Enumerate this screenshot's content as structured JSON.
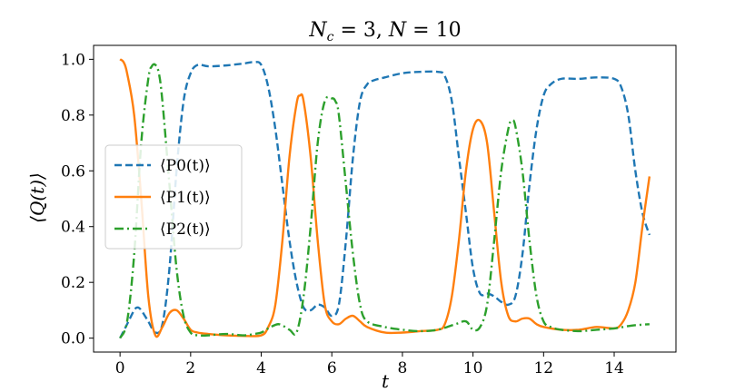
{
  "chart_data": {
    "type": "line",
    "title": "N_c = 3, N = 10",
    "xlabel": "t",
    "ylabel": "⟨Q(t)⟩",
    "xlim": [
      -0.75,
      15.75
    ],
    "ylim": [
      -0.05,
      1.05
    ],
    "xticks": [
      0,
      2,
      4,
      6,
      8,
      10,
      12,
      14
    ],
    "yticks": [
      0.0,
      0.2,
      0.4,
      0.6,
      0.8,
      1.0
    ],
    "xtick_labels": [
      "0",
      "2",
      "4",
      "6",
      "8",
      "10",
      "12",
      "14"
    ],
    "ytick_labels": [
      "0.0",
      "0.2",
      "0.4",
      "0.6",
      "0.8",
      "1.0"
    ],
    "grid": false,
    "legend_position": "center-left",
    "series": [
      {
        "name": "⟨P0(t)⟩",
        "color": "#1f77b4",
        "style": "dashed",
        "x": [
          0,
          0.2,
          0.4,
          0.5,
          0.6,
          0.8,
          1.0,
          1.2,
          1.4,
          1.6,
          1.8,
          2.0,
          2.2,
          2.5,
          3.0,
          3.5,
          3.8,
          4.0,
          4.2,
          4.4,
          4.6,
          4.8,
          5.0,
          5.2,
          5.4,
          5.6,
          5.8,
          6.0,
          6.2,
          6.4,
          6.6,
          6.8,
          7.0,
          7.2,
          7.5,
          8.0,
          8.5,
          9.0,
          9.2,
          9.4,
          9.6,
          9.8,
          10.0,
          10.2,
          10.4,
          10.6,
          10.8,
          11.0,
          11.2,
          11.4,
          11.6,
          11.8,
          12.0,
          12.2,
          12.5,
          13.0,
          13.5,
          14.0,
          14.2,
          14.4,
          14.6,
          14.8,
          15.0
        ],
        "y": [
          0.0,
          0.05,
          0.1,
          0.11,
          0.1,
          0.06,
          0.02,
          0.05,
          0.25,
          0.6,
          0.85,
          0.95,
          0.98,
          0.975,
          0.978,
          0.985,
          0.99,
          0.98,
          0.9,
          0.75,
          0.55,
          0.35,
          0.2,
          0.11,
          0.1,
          0.12,
          0.11,
          0.08,
          0.12,
          0.35,
          0.65,
          0.85,
          0.91,
          0.925,
          0.935,
          0.95,
          0.955,
          0.955,
          0.94,
          0.85,
          0.65,
          0.45,
          0.25,
          0.16,
          0.16,
          0.15,
          0.13,
          0.12,
          0.15,
          0.3,
          0.55,
          0.75,
          0.87,
          0.91,
          0.93,
          0.93,
          0.935,
          0.93,
          0.9,
          0.8,
          0.6,
          0.45,
          0.37
        ]
      },
      {
        "name": "⟨P1(t)⟩",
        "color": "#ff7f0e",
        "style": "solid",
        "x": [
          0,
          0.1,
          0.2,
          0.4,
          0.6,
          0.8,
          1.0,
          1.2,
          1.4,
          1.6,
          1.8,
          2.0,
          2.2,
          2.5,
          3.0,
          3.5,
          4.0,
          4.2,
          4.4,
          4.6,
          4.8,
          5.0,
          5.1,
          5.2,
          5.4,
          5.6,
          5.8,
          6.0,
          6.2,
          6.4,
          6.6,
          6.8,
          7.0,
          7.5,
          8.0,
          8.5,
          9.0,
          9.2,
          9.4,
          9.6,
          9.8,
          10.0,
          10.2,
          10.4,
          10.6,
          10.8,
          11.0,
          11.2,
          11.4,
          11.6,
          11.8,
          12.0,
          12.5,
          13.0,
          13.5,
          14.0,
          14.2,
          14.4,
          14.6,
          14.8,
          15.0
        ],
        "y": [
          1.0,
          0.99,
          0.95,
          0.8,
          0.5,
          0.15,
          0.01,
          0.04,
          0.09,
          0.1,
          0.07,
          0.03,
          0.02,
          0.015,
          0.01,
          0.008,
          0.01,
          0.04,
          0.12,
          0.35,
          0.65,
          0.84,
          0.87,
          0.85,
          0.65,
          0.35,
          0.12,
          0.06,
          0.05,
          0.07,
          0.08,
          0.06,
          0.04,
          0.02,
          0.02,
          0.025,
          0.03,
          0.05,
          0.15,
          0.35,
          0.6,
          0.75,
          0.78,
          0.7,
          0.45,
          0.2,
          0.08,
          0.06,
          0.07,
          0.07,
          0.05,
          0.04,
          0.03,
          0.03,
          0.04,
          0.035,
          0.05,
          0.1,
          0.2,
          0.4,
          0.58
        ]
      },
      {
        "name": "⟨P2(t)⟩",
        "color": "#2ca02c",
        "style": "dashdot",
        "x": [
          0,
          0.2,
          0.4,
          0.6,
          0.8,
          0.9,
          1.0,
          1.1,
          1.2,
          1.4,
          1.6,
          1.8,
          2.0,
          2.2,
          2.5,
          3.0,
          3.5,
          3.8,
          4.0,
          4.2,
          4.5,
          4.8,
          5.0,
          5.2,
          5.4,
          5.6,
          5.8,
          6.0,
          6.1,
          6.2,
          6.4,
          6.6,
          6.8,
          7.0,
          7.5,
          8.0,
          8.5,
          9.0,
          9.5,
          9.8,
          10.0,
          10.2,
          10.4,
          10.6,
          10.8,
          11.0,
          11.1,
          11.2,
          11.4,
          11.6,
          11.8,
          12.0,
          12.2,
          12.5,
          13.0,
          13.5,
          14.0,
          14.5,
          15.0
        ],
        "y": [
          0.0,
          0.06,
          0.3,
          0.7,
          0.93,
          0.975,
          0.98,
          0.95,
          0.85,
          0.55,
          0.25,
          0.08,
          0.02,
          0.01,
          0.01,
          0.015,
          0.01,
          0.015,
          0.02,
          0.035,
          0.05,
          0.03,
          0.02,
          0.15,
          0.4,
          0.7,
          0.85,
          0.86,
          0.85,
          0.8,
          0.55,
          0.3,
          0.12,
          0.06,
          0.04,
          0.03,
          0.025,
          0.03,
          0.05,
          0.06,
          0.03,
          0.04,
          0.12,
          0.35,
          0.6,
          0.75,
          0.78,
          0.76,
          0.6,
          0.35,
          0.15,
          0.06,
          0.04,
          0.03,
          0.025,
          0.03,
          0.035,
          0.045,
          0.05
        ]
      }
    ]
  }
}
